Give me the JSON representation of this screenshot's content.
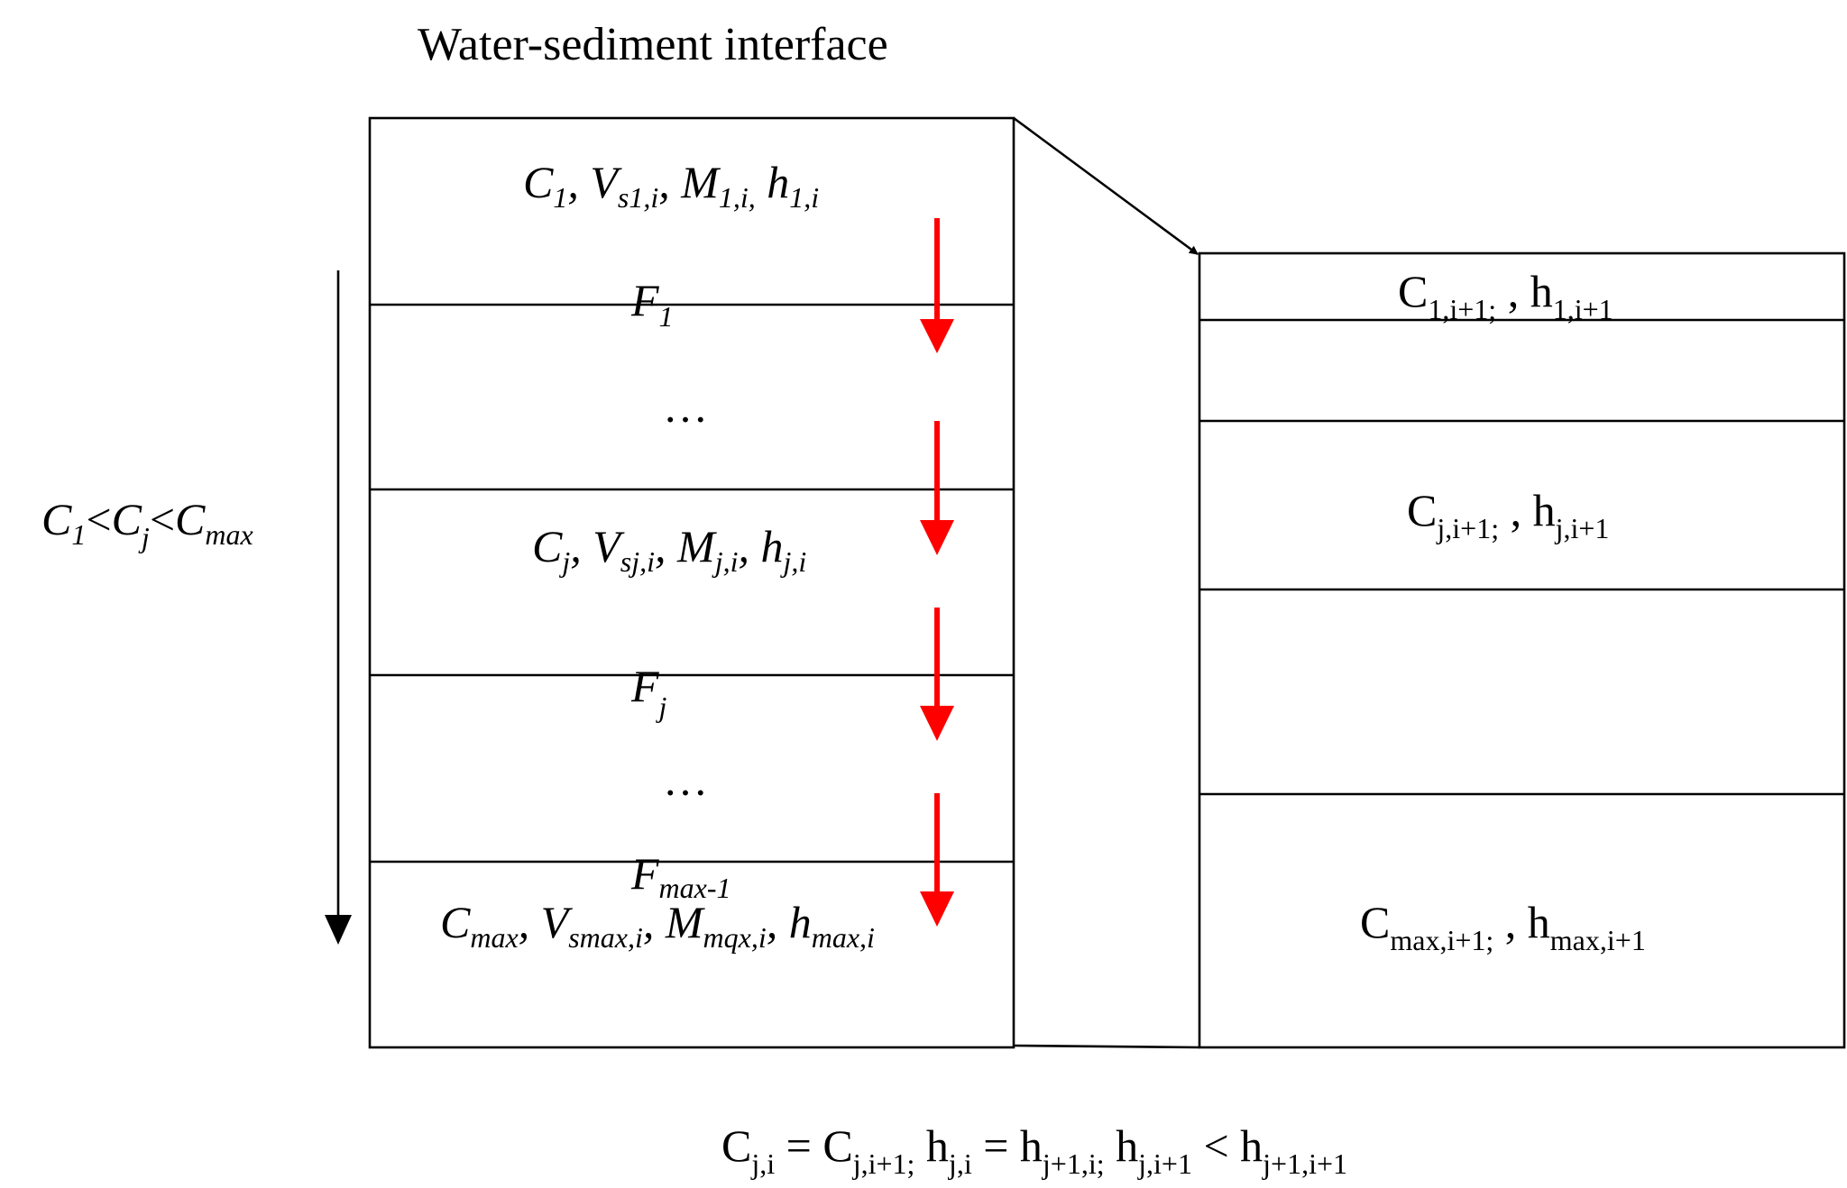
{
  "title": "Water-sediment interface",
  "left_column": {
    "layer_1": {
      "c": "C",
      "c_sub": "1",
      "v": "V",
      "v_sub": "s1,i",
      "m": "M",
      "m_sub": "1,i,",
      "h": "h",
      "h_sub": "1,i",
      "sep": ", "
    },
    "flux_1": {
      "f": "F",
      "f_sub": "1"
    },
    "ellipsis_1": "…",
    "layer_j": {
      "c": "C",
      "c_sub": "j",
      "v": "V",
      "v_sub": "sj,i",
      "m": "M",
      "m_sub": "j,i",
      "h": "h",
      "h_sub": "j,i",
      "sep": ", "
    },
    "flux_j": {
      "f": "F",
      "f_sub": "j"
    },
    "ellipsis_2": "…",
    "flux_max": {
      "f": "F",
      "f_sub": "max-1"
    },
    "layer_max": {
      "c": "C",
      "c_sub": "max",
      "v": "V",
      "v_sub": "smax,i",
      "m": "M",
      "m_sub": "mqx,i",
      "h": "h",
      "h_sub": "max,i",
      "sep": ", "
    }
  },
  "concentration_order": {
    "c1": "C",
    "c1_sub": "1",
    "lt": "<",
    "cj": "C",
    "cj_sub": "j",
    "cmax": "C",
    "cmax_sub": "max"
  },
  "right_column": {
    "layer_1": {
      "c": "C",
      "c_sub": "1,i+1;",
      "sep": " , ",
      "h": "h",
      "h_sub": "1,i+1"
    },
    "layer_j": {
      "c": "C",
      "c_sub": "j,i+1;",
      "sep": " , ",
      "h": "h",
      "h_sub": "j,i+1"
    },
    "layer_max": {
      "c": "C",
      "c_sub": "max,i+1;",
      "sep": " , ",
      "h": "h",
      "h_sub": "max,i+1"
    }
  },
  "equation": {
    "c_ji": "C",
    "c_ji_sub": "j,i",
    "eq": " = ",
    "c_ji1": "C",
    "c_ji1_sub": "j,i+1;",
    "h_ji": " h",
    "h_ji_sub": "j,i",
    "h_j1i": "h",
    "h_j1i_sub": "j+1,i;",
    "h_ji1": " h",
    "h_ji1_sub": "j,i+1",
    "lt": " < ",
    "h_j1i1": "h",
    "h_j1i1_sub": "j+1,i+1"
  },
  "colors": {
    "flux_arrow": "#ff0000",
    "lines": "#000000"
  }
}
